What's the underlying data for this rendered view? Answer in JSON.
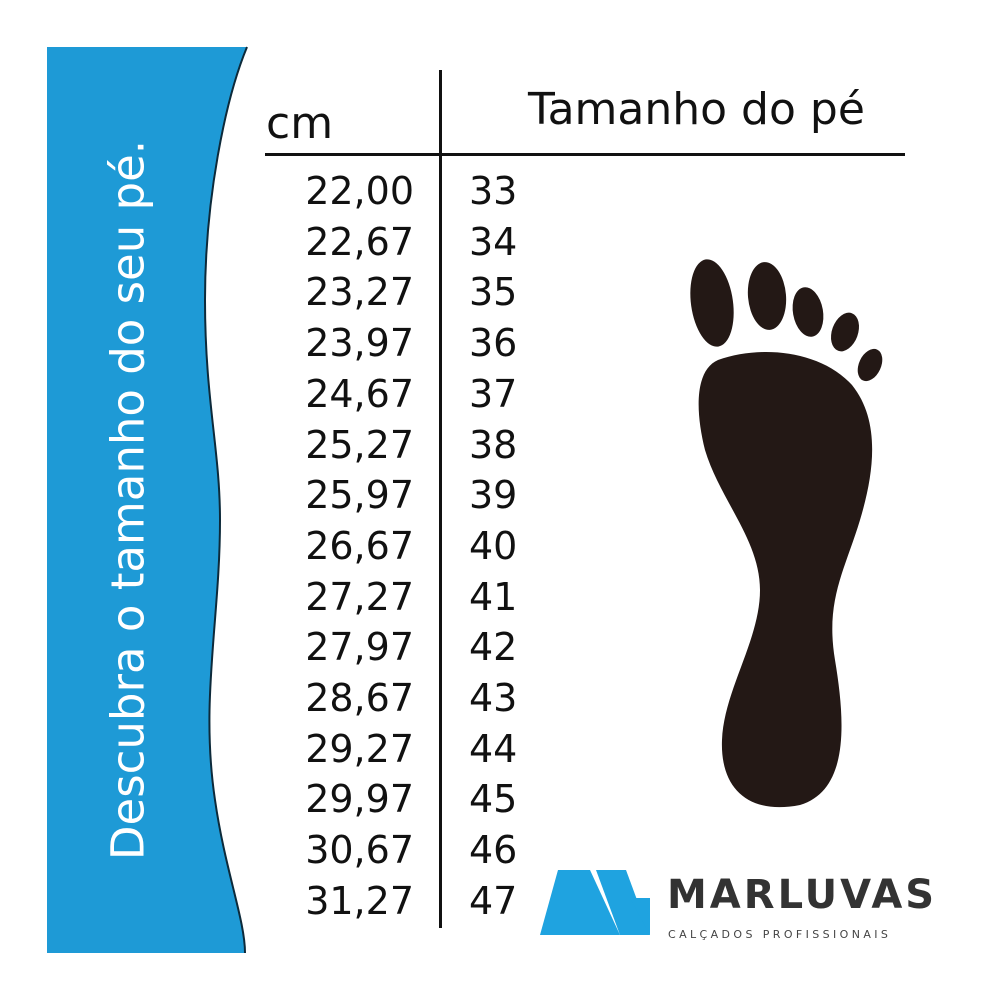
{
  "banner": {
    "text": "Descubra o tamanho do seu pé.",
    "color": "#1e9ad6"
  },
  "table": {
    "header_cm": "cm",
    "header_size": "Tamanho do pé",
    "rows": [
      {
        "cm": "22,00",
        "size": "33"
      },
      {
        "cm": "22,67",
        "size": "34"
      },
      {
        "cm": "23,27",
        "size": "35"
      },
      {
        "cm": "23,97",
        "size": "36"
      },
      {
        "cm": "24,67",
        "size": "37"
      },
      {
        "cm": "25,27",
        "size": "38"
      },
      {
        "cm": "25,97",
        "size": "39"
      },
      {
        "cm": "26,67",
        "size": "40"
      },
      {
        "cm": "27,27",
        "size": "41"
      },
      {
        "cm": "27,97",
        "size": "42"
      },
      {
        "cm": "28,67",
        "size": "43"
      },
      {
        "cm": "29,27",
        "size": "44"
      },
      {
        "cm": "29,97",
        "size": "45"
      },
      {
        "cm": "30,67",
        "size": "46"
      },
      {
        "cm": "31,27",
        "size": "47"
      }
    ]
  },
  "logo": {
    "name": "MARLUVAS",
    "tagline": "CALÇADOS PROFISSIONAIS",
    "color": "#1fa3e0"
  },
  "icons": {
    "foot": "footprint-icon"
  }
}
